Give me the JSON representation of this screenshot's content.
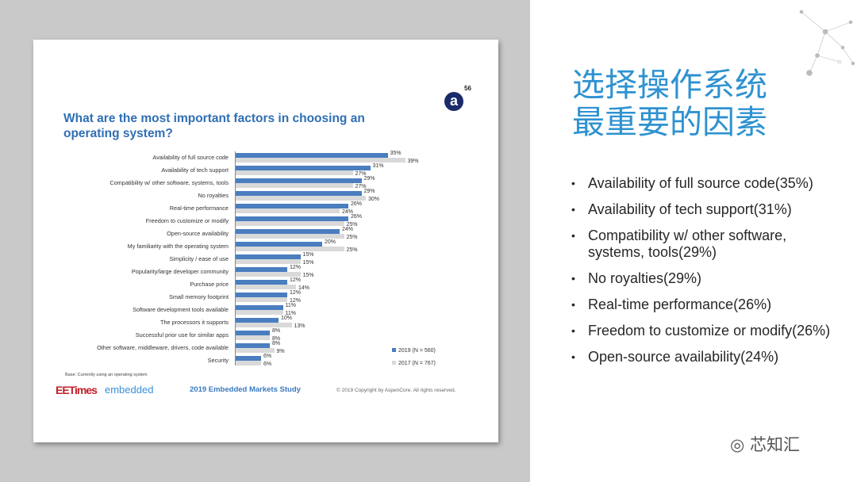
{
  "slide": {
    "title": "What are the most important factors in choosing an operating system?",
    "logo_letter": "a",
    "page_number": "56",
    "base_note": "Base: Currently using an operating system",
    "brand_eetimes": "EETimes",
    "brand_embedded": "embedded",
    "study": "2019 Embedded Markets Study",
    "copyright": "© 2019 Copyright by AspenCore. All rights reserved."
  },
  "chart_data": {
    "type": "bar",
    "orientation": "horizontal",
    "categories": [
      "Availability of full source code",
      "Availability of tech support",
      "Compatibility w/ other software, systems, tools",
      "No royalties",
      "Real-time performance",
      "Freedom to customize or modify",
      "Open-source availability",
      "My familiarity with the operating system",
      "Simplicity / ease of use",
      "Popularity/large developer community",
      "Purchase price",
      "Small memory footprint",
      "Software development tools available",
      "The processors it supports",
      "Successful prior use for similar apps",
      "Other software, middleware, drivers, code available",
      "Security"
    ],
    "series": [
      {
        "name": "2019 (N = 560)",
        "color": "#4a7ebf",
        "values": [
          35,
          31,
          29,
          29,
          26,
          26,
          24,
          20,
          15,
          12,
          12,
          12,
          11,
          10,
          8,
          8,
          6
        ]
      },
      {
        "name": "2017 (N = 767)",
        "color": "#d9d9d9",
        "values": [
          39,
          27,
          27,
          30,
          24,
          25,
          25,
          25,
          15,
          15,
          14,
          12,
          11,
          13,
          8,
          9,
          6
        ]
      }
    ],
    "value_suffix": "%",
    "legend": "bottom-right"
  },
  "right": {
    "title_line1": "选择操作系统",
    "title_line2": "最重要的因素",
    "bullets": [
      "Availability of full source code(35%)",
      "Availability of tech support(31%)",
      "Compatibility w/ other software, systems, tools(29%)",
      "No royalties(29%)",
      "Real-time performance(26%)",
      "Freedom to customize or modify(26%)",
      "Open-source availability(24%)"
    ],
    "watermark": "芯知汇"
  }
}
